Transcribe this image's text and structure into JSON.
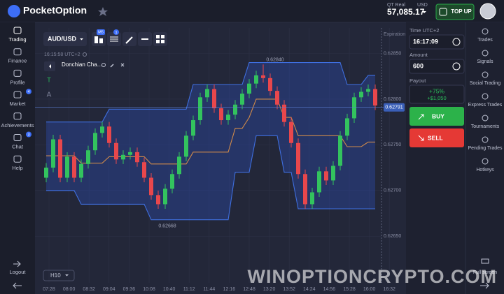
{
  "header": {
    "brand": "PocketOption",
    "account": "QT Real",
    "currency": "USD",
    "balance": "57,085.17",
    "top_up": "TOP UP"
  },
  "sidebar": [
    {
      "label": "Trading"
    },
    {
      "label": "Finance"
    },
    {
      "label": "Profile"
    },
    {
      "label": "Market",
      "badge": 4
    },
    {
      "label": "Achievements"
    },
    {
      "label": "Chat",
      "badge": 3
    },
    {
      "label": "Help"
    }
  ],
  "logout": "Logout",
  "toolbar": {
    "asset": "AUD/USD",
    "timeframe_badge": "M5",
    "indicator_badge": 1
  },
  "chart": {
    "timestamp": "16:15:58 UTC+2",
    "indicator": "Donchian Cha...",
    "tools": [
      "T",
      "A"
    ],
    "period": "H10",
    "expiration": "Expiration",
    "ylim": [
      0.62599,
      0.62884
    ],
    "yticks": [
      {
        "value": 0.6285,
        "label": "0.62850"
      },
      {
        "value": 0.628,
        "label": "0.62800"
      },
      {
        "value": 0.6275,
        "label": "0.62750"
      },
      {
        "value": 0.627,
        "label": "0.62700"
      },
      {
        "value": 0.6265,
        "label": "0.62650"
      }
    ],
    "x_labels": [
      "07:28",
      "08:00",
      "08:32",
      "09:04",
      "09:36",
      "10:08",
      "10:40",
      "11:12",
      "11:44",
      "12:16",
      "12:48",
      "13:20",
      "13:52",
      "14:24",
      "14:56",
      "15:28",
      "16:00",
      "16:32"
    ],
    "candles": [
      [
        0.62714,
        0.6273,
        0.62709,
        0.62725
      ],
      [
        0.62725,
        0.62761,
        0.6272,
        0.62756
      ],
      [
        0.62756,
        0.62761,
        0.62709,
        0.62714
      ],
      [
        0.62714,
        0.62742,
        0.62709,
        0.62737
      ],
      [
        0.62737,
        0.62742,
        0.62709,
        0.62714
      ],
      [
        0.62714,
        0.62734,
        0.62709,
        0.62729
      ],
      [
        0.62729,
        0.62749,
        0.62724,
        0.62744
      ],
      [
        0.62744,
        0.62768,
        0.62739,
        0.62763
      ],
      [
        0.62763,
        0.62775,
        0.62758,
        0.6277
      ],
      [
        0.6277,
        0.62775,
        0.62747,
        0.62752
      ],
      [
        0.62752,
        0.62757,
        0.62729,
        0.62734
      ],
      [
        0.62734,
        0.62744,
        0.62729,
        0.62739
      ],
      [
        0.62739,
        0.62747,
        0.62734,
        0.62742
      ],
      [
        0.62742,
        0.62747,
        0.62726,
        0.62731
      ],
      [
        0.62731,
        0.62736,
        0.62709,
        0.62714
      ],
      [
        0.62714,
        0.62719,
        0.6269,
        0.62695
      ],
      [
        0.62695,
        0.627,
        0.6268,
        0.62685
      ],
      [
        0.62685,
        0.62707,
        0.6268,
        0.62702
      ],
      [
        0.62702,
        0.62723,
        0.62697,
        0.62718
      ],
      [
        0.62718,
        0.62742,
        0.62713,
        0.62737
      ],
      [
        0.62737,
        0.62765,
        0.62732,
        0.6276
      ],
      [
        0.6276,
        0.62782,
        0.62755,
        0.62777
      ],
      [
        0.62777,
        0.62807,
        0.62772,
        0.62802
      ],
      [
        0.62802,
        0.62816,
        0.62797,
        0.62811
      ],
      [
        0.62811,
        0.62816,
        0.62785,
        0.6279
      ],
      [
        0.6279,
        0.62795,
        0.62772,
        0.62777
      ],
      [
        0.62777,
        0.62788,
        0.62772,
        0.62783
      ],
      [
        0.62783,
        0.62799,
        0.62778,
        0.62794
      ],
      [
        0.62794,
        0.62811,
        0.62789,
        0.62806
      ],
      [
        0.62806,
        0.62822,
        0.62801,
        0.62817
      ],
      [
        0.62817,
        0.62831,
        0.62812,
        0.62826
      ],
      [
        0.62826,
        0.62838,
        0.62818,
        0.62823
      ],
      [
        0.62823,
        0.62828,
        0.62804,
        0.62809
      ],
      [
        0.62809,
        0.62814,
        0.62789,
        0.62794
      ],
      [
        0.62794,
        0.62799,
        0.6277,
        0.62775
      ],
      [
        0.62775,
        0.6278,
        0.62747,
        0.62752
      ],
      [
        0.62752,
        0.62757,
        0.62713,
        0.62718
      ],
      [
        0.62718,
        0.62723,
        0.6268,
        0.62685
      ],
      [
        0.62685,
        0.62703,
        0.6268,
        0.62698
      ],
      [
        0.62698,
        0.62726,
        0.62693,
        0.62721
      ],
      [
        0.62721,
        0.62726,
        0.62706,
        0.62711
      ],
      [
        0.62711,
        0.62732,
        0.62706,
        0.62727
      ],
      [
        0.62727,
        0.62765,
        0.62722,
        0.6276
      ],
      [
        0.6276,
        0.62784,
        0.62755,
        0.62779
      ],
      [
        0.62779,
        0.62807,
        0.62774,
        0.62802
      ],
      [
        0.62802,
        0.62813,
        0.62797,
        0.62808
      ],
      [
        0.62808,
        0.62816,
        0.62803,
        0.62811
      ],
      [
        0.62811,
        0.62816,
        0.62788,
        0.62793
      ]
    ],
    "upper": [
      0.62775,
      0.62775,
      0.62775,
      0.62775,
      0.62775,
      0.62775,
      0.62775,
      0.62775,
      0.62775,
      0.62789,
      0.62789,
      0.62789,
      0.62789,
      0.62789,
      0.62789,
      0.62789,
      0.62789,
      0.62789,
      0.62789,
      0.62789,
      0.62789,
      0.62816,
      0.62816,
      0.62816,
      0.62816,
      0.62816,
      0.62816,
      0.62816,
      0.62816,
      0.6284,
      0.6284,
      0.6284,
      0.6284,
      0.6284,
      0.6284,
      0.6284,
      0.6284,
      0.6284,
      0.6284,
      0.6284,
      0.6284,
      0.6284,
      0.6284,
      0.62816,
      0.62816,
      0.62816,
      0.62826,
      0.62826
    ],
    "lower": [
      0.627,
      0.627,
      0.627,
      0.627,
      0.627,
      0.62685,
      0.62685,
      0.62685,
      0.62685,
      0.62685,
      0.62685,
      0.62685,
      0.62685,
      0.62685,
      0.62685,
      0.62668,
      0.62668,
      0.62668,
      0.62668,
      0.62668,
      0.62668,
      0.62668,
      0.62668,
      0.62668,
      0.62668,
      0.62668,
      0.62668,
      0.6272,
      0.6272,
      0.6272,
      0.6276,
      0.6276,
      0.6276,
      0.6276,
      0.6272,
      0.6272,
      0.6268,
      0.6268,
      0.6268,
      0.6268,
      0.6268,
      0.6268,
      0.6268,
      0.6268,
      0.6268,
      0.6268,
      0.6268,
      0.6268
    ],
    "middle": [
      0.62738,
      0.62738,
      0.62738,
      0.62738,
      0.62738,
      0.6273,
      0.6273,
      0.6273,
      0.6273,
      0.62737,
      0.62737,
      0.62737,
      0.62737,
      0.62737,
      0.62737,
      0.62729,
      0.62729,
      0.62729,
      0.62729,
      0.62729,
      0.62729,
      0.62742,
      0.62742,
      0.62742,
      0.62742,
      0.62742,
      0.62742,
      0.62768,
      0.62768,
      0.6278,
      0.628,
      0.628,
      0.628,
      0.628,
      0.6278,
      0.6278,
      0.6276,
      0.6276,
      0.6276,
      0.6276,
      0.6276,
      0.6276,
      0.6276,
      0.62748,
      0.62748,
      0.62748,
      0.62753,
      0.62753
    ],
    "high_label": {
      "value": 0.6284,
      "label": "0.62840"
    },
    "low_label": {
      "value": 0.62668,
      "label": "0.62668"
    },
    "current": {
      "value": 0.62791,
      "label": "0.62791"
    }
  },
  "panel": {
    "time_label": "Time UTC+2",
    "time": "16:17:09",
    "amount_label": "Amount",
    "amount": "600",
    "payout_label": "Payout",
    "payout_percent": "+75%",
    "payout_amount": "+$1,050",
    "buy": "BUY",
    "sell": "SELL"
  },
  "right_sidebar": [
    "Trades",
    "Signals",
    "Social Trading",
    "Express Trades",
    "Tournaments",
    "Pending Trades",
    "Hotkeys"
  ],
  "full_screen": "Full screen",
  "watermark": "WINOPTIONCRYPTO.COM"
}
